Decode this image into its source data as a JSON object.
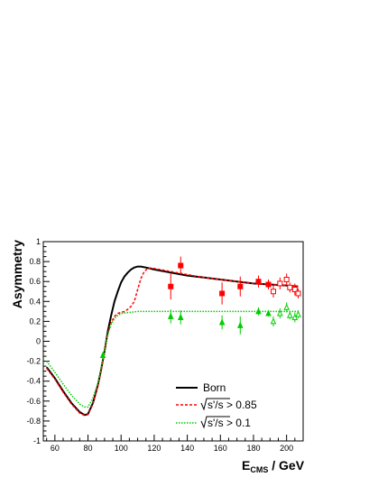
{
  "chart_data": {
    "type": "line",
    "ylabel": "Asymmetry",
    "xlabel": {
      "main": "E",
      "sub": "CMS",
      "unit": " / GeV"
    },
    "xlim": [
      53,
      210
    ],
    "ylim": [
      -1,
      1
    ],
    "xticks": [
      60,
      80,
      100,
      120,
      140,
      160,
      180,
      200
    ],
    "yticks": [
      -1,
      -0.8,
      -0.6,
      -0.4,
      -0.2,
      0,
      0.2,
      0.4,
      0.6,
      0.8,
      1
    ],
    "legend_position": "bottom-right",
    "series": [
      {
        "name": "Born",
        "style": "solid",
        "color": "#000000",
        "x": [
          55,
          60,
          65,
          70,
          75,
          78,
          80,
          83,
          86,
          88,
          90,
          91,
          92,
          94,
          96,
          98,
          100,
          102,
          104,
          106,
          108,
          110,
          112,
          115,
          120,
          130,
          140,
          150,
          160,
          170,
          180,
          190,
          200,
          207
        ],
        "y": [
          -0.26,
          -0.37,
          -0.5,
          -0.62,
          -0.71,
          -0.74,
          -0.73,
          -0.62,
          -0.44,
          -0.28,
          -0.1,
          0.0,
          0.1,
          0.26,
          0.4,
          0.5,
          0.59,
          0.65,
          0.69,
          0.72,
          0.74,
          0.75,
          0.75,
          0.74,
          0.72,
          0.69,
          0.66,
          0.64,
          0.62,
          0.6,
          0.58,
          0.57,
          0.56,
          0.55
        ]
      },
      {
        "name": "√s'/s > 0.85",
        "legend_root": "s'/s",
        "legend_rest": " > 0.85",
        "style": "dashed",
        "color": "#ff0000",
        "x": [
          55,
          60,
          65,
          70,
          75,
          78,
          80,
          83,
          86,
          88,
          90,
          91,
          92,
          94,
          96,
          98,
          100,
          102,
          104,
          106,
          108,
          110,
          112,
          114,
          116,
          118,
          120,
          130,
          140,
          150,
          160,
          170,
          180,
          190,
          200,
          207
        ],
        "y": [
          -0.27,
          -0.38,
          -0.51,
          -0.63,
          -0.72,
          -0.745,
          -0.735,
          -0.63,
          -0.45,
          -0.29,
          -0.11,
          0.0,
          0.08,
          0.19,
          0.25,
          0.28,
          0.29,
          0.3,
          0.32,
          0.35,
          0.4,
          0.52,
          0.63,
          0.7,
          0.73,
          0.735,
          0.73,
          0.7,
          0.67,
          0.64,
          0.62,
          0.6,
          0.58,
          0.57,
          0.56,
          0.55
        ]
      },
      {
        "name": "√s'/s > 0.1",
        "legend_root": "s'/s",
        "legend_rest": " > 0.1",
        "style": "dotted",
        "color": "#00cc00",
        "x": [
          55,
          60,
          65,
          70,
          75,
          78,
          80,
          83,
          86,
          88,
          90,
          91,
          92,
          94,
          96,
          98,
          100,
          105,
          110,
          120,
          140,
          160,
          180,
          200,
          207
        ],
        "y": [
          -0.2,
          -0.31,
          -0.43,
          -0.54,
          -0.63,
          -0.66,
          -0.66,
          -0.57,
          -0.42,
          -0.27,
          -0.1,
          -0.01,
          0.07,
          0.17,
          0.23,
          0.26,
          0.28,
          0.29,
          0.3,
          0.3,
          0.3,
          0.3,
          0.3,
          0.3,
          0.3
        ]
      }
    ],
    "data_points": [
      {
        "set": "red_filled",
        "color": "#ff0000",
        "marker": "square-filled",
        "x": [
          130,
          136,
          161,
          172,
          183,
          189
        ],
        "y": [
          0.55,
          0.76,
          0.48,
          0.55,
          0.6,
          0.57
        ],
        "err": [
          0.13,
          0.09,
          0.11,
          0.1,
          0.06,
          0.05
        ]
      },
      {
        "set": "red_open",
        "color": "#ff0000",
        "marker": "square-open",
        "x": [
          192,
          196,
          200,
          202,
          205,
          207
        ],
        "y": [
          0.5,
          0.58,
          0.62,
          0.54,
          0.52,
          0.48
        ],
        "err": [
          0.06,
          0.06,
          0.06,
          0.05,
          0.06,
          0.05
        ]
      },
      {
        "set": "green_filled",
        "color": "#00cc00",
        "marker": "triangle-filled",
        "x": [
          89,
          130,
          136,
          161,
          172,
          183,
          189
        ],
        "y": [
          -0.14,
          0.25,
          0.24,
          0.19,
          0.16,
          0.3,
          0.28
        ],
        "err": [
          0.02,
          0.07,
          0.07,
          0.07,
          0.09,
          0.04,
          0.03
        ]
      },
      {
        "set": "green_open",
        "color": "#00cc00",
        "marker": "triangle-open",
        "x": [
          192,
          196,
          200,
          202,
          205,
          207
        ],
        "y": [
          0.2,
          0.28,
          0.34,
          0.26,
          0.24,
          0.27
        ],
        "err": [
          0.05,
          0.05,
          0.05,
          0.04,
          0.05,
          0.04
        ]
      }
    ]
  }
}
